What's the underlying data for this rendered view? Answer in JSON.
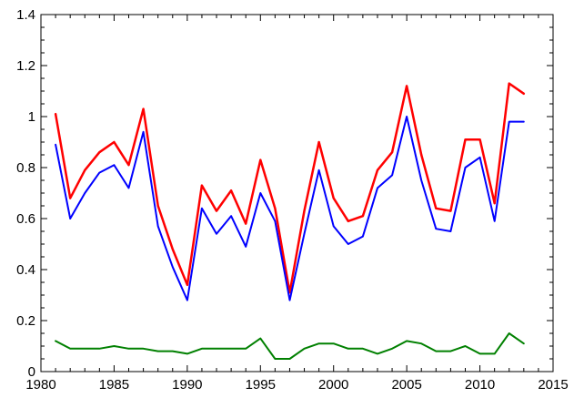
{
  "chart_data": {
    "type": "line",
    "title": "",
    "xlabel": "",
    "ylabel": "",
    "xlim": [
      1980,
      2015
    ],
    "ylim": [
      0,
      1.4
    ],
    "xticks": [
      1980,
      1985,
      1990,
      1995,
      2000,
      2005,
      2010,
      2015
    ],
    "xtick_labels": [
      "1980",
      "1985",
      "1990",
      "1995",
      "2000",
      "2005",
      "2010",
      "2015"
    ],
    "yticks": [
      0,
      0.2,
      0.4,
      0.6,
      0.8,
      1,
      1.2,
      1.4
    ],
    "ytick_labels": [
      "0",
      "0.2",
      "0.4",
      "0.6",
      "0.8",
      "1",
      "1.2",
      "1.4"
    ],
    "grid": false,
    "x": [
      1981,
      1982,
      1983,
      1984,
      1985,
      1986,
      1987,
      1988,
      1989,
      1990,
      1991,
      1992,
      1993,
      1994,
      1995,
      1996,
      1997,
      1998,
      1999,
      2000,
      2001,
      2002,
      2003,
      2004,
      2005,
      2006,
      2007,
      2008,
      2009,
      2010,
      2011,
      2012,
      2013
    ],
    "series": [
      {
        "color": "#ff0000",
        "values": [
          1.01,
          0.68,
          0.79,
          0.86,
          0.9,
          0.81,
          1.03,
          0.65,
          0.48,
          0.34,
          0.73,
          0.63,
          0.71,
          0.58,
          0.83,
          0.64,
          0.31,
          0.63,
          0.9,
          0.68,
          0.59,
          0.61,
          0.79,
          0.86,
          1.12,
          0.85,
          0.64,
          0.63,
          0.91,
          0.91,
          0.66,
          1.13,
          1.09
        ]
      },
      {
        "color": "#0000ff",
        "values": [
          0.89,
          0.6,
          0.7,
          0.78,
          0.81,
          0.72,
          0.94,
          0.57,
          0.41,
          0.28,
          0.64,
          0.54,
          0.61,
          0.49,
          0.7,
          0.59,
          0.28,
          0.54,
          0.79,
          0.57,
          0.5,
          0.53,
          0.72,
          0.77,
          1.0,
          0.75,
          0.56,
          0.55,
          0.8,
          0.84,
          0.59,
          0.98,
          0.98
        ]
      },
      {
        "color": "#008000",
        "values": [
          0.12,
          0.09,
          0.09,
          0.09,
          0.1,
          0.09,
          0.09,
          0.08,
          0.08,
          0.07,
          0.09,
          0.09,
          0.09,
          0.09,
          0.13,
          0.05,
          0.05,
          0.09,
          0.11,
          0.11,
          0.09,
          0.09,
          0.07,
          0.09,
          0.12,
          0.11,
          0.08,
          0.08,
          0.1,
          0.07,
          0.07,
          0.15,
          0.11
        ]
      }
    ]
  }
}
